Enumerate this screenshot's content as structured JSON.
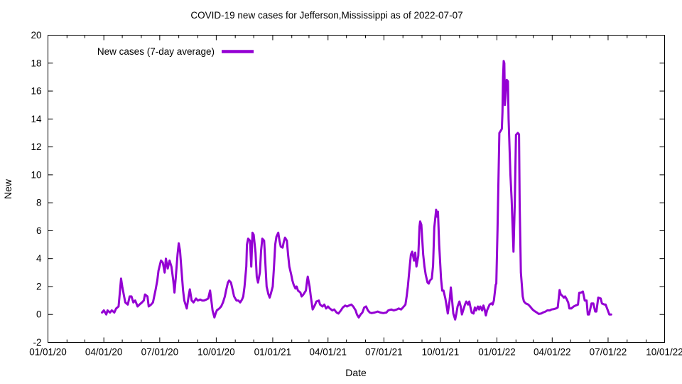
{
  "chart_data": {
    "type": "line",
    "title": "COVID-19 new cases for Jefferson,Mississippi as of 2022-07-07",
    "xlabel": "Date",
    "ylabel": "New",
    "grid": false,
    "legend_position": "top-left-inside",
    "legend": [
      {
        "label": "New cases (7-day average)",
        "color": "#9400d3"
      }
    ],
    "ylim": [
      -2,
      20
    ],
    "y_tick_step": 2,
    "x_axis": {
      "unit": "days_since_2020-01-01",
      "range_days": [
        0,
        1004
      ],
      "minor_tick_interval": "monthly",
      "major_ticks": [
        {
          "day": 0,
          "label": "01/01/20"
        },
        {
          "day": 91,
          "label": "04/01/20"
        },
        {
          "day": 182,
          "label": "07/01/20"
        },
        {
          "day": 274,
          "label": "10/01/20"
        },
        {
          "day": 366,
          "label": "01/01/21"
        },
        {
          "day": 456,
          "label": "04/01/21"
        },
        {
          "day": 547,
          "label": "07/01/21"
        },
        {
          "day": 639,
          "label": "10/01/21"
        },
        {
          "day": 731,
          "label": "01/01/22"
        },
        {
          "day": 821,
          "label": "04/01/22"
        },
        {
          "day": 912,
          "label": "07/01/22"
        },
        {
          "day": 1004,
          "label": "10/01/22"
        }
      ]
    },
    "series": [
      {
        "name": "New cases (7-day average)",
        "color": "#9400d3",
        "line_width": 3,
        "points": [
          [
            88,
            0.14
          ],
          [
            91,
            0.29
          ],
          [
            95,
            0
          ],
          [
            97,
            0.29
          ],
          [
            101,
            0.14
          ],
          [
            104,
            0.29
          ],
          [
            108,
            0.14
          ],
          [
            111,
            0.43
          ],
          [
            115,
            0.57
          ],
          [
            117,
            1.57
          ],
          [
            119,
            2.57
          ],
          [
            121,
            2
          ],
          [
            124,
            1.29
          ],
          [
            126,
            0.86
          ],
          [
            130,
            0.71
          ],
          [
            133,
            1.29
          ],
          [
            136,
            1.29
          ],
          [
            139,
            0.86
          ],
          [
            142,
            1
          ],
          [
            146,
            0.57
          ],
          [
            149,
            0.71
          ],
          [
            153,
            0.86
          ],
          [
            156,
            1
          ],
          [
            158,
            1.43
          ],
          [
            162,
            1.29
          ],
          [
            164,
            0.57
          ],
          [
            168,
            0.71
          ],
          [
            171,
            0.86
          ],
          [
            175,
            1.71
          ],
          [
            178,
            2.43
          ],
          [
            180,
            3.14
          ],
          [
            184,
            3.86
          ],
          [
            187,
            3.71
          ],
          [
            190,
            3
          ],
          [
            192,
            4
          ],
          [
            195,
            3.29
          ],
          [
            198,
            3.86
          ],
          [
            201,
            3.43
          ],
          [
            204,
            2.43
          ],
          [
            206,
            1.57
          ],
          [
            208,
            2.57
          ],
          [
            211,
            4.29
          ],
          [
            213,
            5.1
          ],
          [
            215,
            4.57
          ],
          [
            217,
            3.43
          ],
          [
            220,
            1.71
          ],
          [
            222,
            1
          ],
          [
            226,
            0.43
          ],
          [
            229,
            1.29
          ],
          [
            231,
            1.8
          ],
          [
            234,
            1
          ],
          [
            237,
            0.86
          ],
          [
            241,
            1.14
          ],
          [
            244,
            1
          ],
          [
            248,
            1.07
          ],
          [
            251,
            1
          ],
          [
            254,
            1
          ],
          [
            258,
            1.07
          ],
          [
            261,
            1.14
          ],
          [
            264,
            1.71
          ],
          [
            266,
            1
          ],
          [
            268,
            0.29
          ],
          [
            271,
            -0.21
          ],
          [
            273,
            0.07
          ],
          [
            275,
            0.29
          ],
          [
            279,
            0.43
          ],
          [
            282,
            0.57
          ],
          [
            285,
            0.86
          ],
          [
            288,
            1.29
          ],
          [
            290,
            1.71
          ],
          [
            293,
            2.29
          ],
          [
            295,
            2.43
          ],
          [
            298,
            2.29
          ],
          [
            301,
            1.71
          ],
          [
            303,
            1.29
          ],
          [
            307,
            1
          ],
          [
            310,
            1
          ],
          [
            313,
            0.86
          ],
          [
            316,
            1.07
          ],
          [
            318,
            1.29
          ],
          [
            320,
            2
          ],
          [
            323,
            3.43
          ],
          [
            324,
            5
          ],
          [
            326,
            5.43
          ],
          [
            329,
            5.29
          ],
          [
            331,
            3.43
          ],
          [
            333,
            5.86
          ],
          [
            335,
            5.71
          ],
          [
            338,
            4.43
          ],
          [
            340,
            2.71
          ],
          [
            342,
            2.29
          ],
          [
            345,
            3
          ],
          [
            347,
            4.57
          ],
          [
            349,
            5.43
          ],
          [
            352,
            5.29
          ],
          [
            354,
            3.71
          ],
          [
            356,
            2
          ],
          [
            359,
            1.43
          ],
          [
            361,
            1.21
          ],
          [
            363,
            1.5
          ],
          [
            366,
            2
          ],
          [
            368,
            3.43
          ],
          [
            370,
            5
          ],
          [
            372,
            5.57
          ],
          [
            375,
            5.86
          ],
          [
            377,
            5.29
          ],
          [
            379,
            4.86
          ],
          [
            382,
            4.79
          ],
          [
            384,
            5.21
          ],
          [
            386,
            5.5
          ],
          [
            389,
            5.29
          ],
          [
            391,
            4.29
          ],
          [
            393,
            3.43
          ],
          [
            396,
            2.86
          ],
          [
            398,
            2.43
          ],
          [
            400,
            2.14
          ],
          [
            403,
            1.86
          ],
          [
            405,
            2
          ],
          [
            407,
            1.71
          ],
          [
            411,
            1.57
          ],
          [
            413,
            1.29
          ],
          [
            416,
            1.43
          ],
          [
            420,
            1.71
          ],
          [
            422,
            2.43
          ],
          [
            423,
            2.71
          ],
          [
            426,
            2
          ],
          [
            428,
            1.29
          ],
          [
            431,
            0.36
          ],
          [
            435,
            0.71
          ],
          [
            437,
            0.93
          ],
          [
            441,
            1
          ],
          [
            443,
            0.71
          ],
          [
            447,
            0.57
          ],
          [
            450,
            0.71
          ],
          [
            453,
            0.43
          ],
          [
            456,
            0.57
          ],
          [
            459,
            0.43
          ],
          [
            463,
            0.29
          ],
          [
            466,
            0.36
          ],
          [
            470,
            0.14
          ],
          [
            473,
            0.07
          ],
          [
            477,
            0.29
          ],
          [
            480,
            0.5
          ],
          [
            484,
            0.64
          ],
          [
            487,
            0.57
          ],
          [
            490,
            0.64
          ],
          [
            494,
            0.71
          ],
          [
            497,
            0.57
          ],
          [
            501,
            0.29
          ],
          [
            503,
            0
          ],
          [
            506,
            -0.21
          ],
          [
            509,
            0
          ],
          [
            512,
            0.14
          ],
          [
            515,
            0.5
          ],
          [
            518,
            0.57
          ],
          [
            521,
            0.29
          ],
          [
            524,
            0.14
          ],
          [
            527,
            0.1
          ],
          [
            532,
            0.14
          ],
          [
            537,
            0.21
          ],
          [
            541,
            0.14
          ],
          [
            546,
            0.1
          ],
          [
            551,
            0.14
          ],
          [
            554,
            0.29
          ],
          [
            559,
            0.36
          ],
          [
            563,
            0.29
          ],
          [
            568,
            0.36
          ],
          [
            571,
            0.43
          ],
          [
            575,
            0.36
          ],
          [
            578,
            0.5
          ],
          [
            582,
            0.71
          ],
          [
            584,
            1.29
          ],
          [
            586,
            2
          ],
          [
            589,
            3.43
          ],
          [
            591,
            4.29
          ],
          [
            593,
            4.5
          ],
          [
            596,
            3.86
          ],
          [
            598,
            4.43
          ],
          [
            600,
            3.43
          ],
          [
            603,
            4.2
          ],
          [
            605,
            6.29
          ],
          [
            606,
            6.66
          ],
          [
            608,
            6.43
          ],
          [
            611,
            4.29
          ],
          [
            613,
            3.43
          ],
          [
            615,
            2.86
          ],
          [
            618,
            2.29
          ],
          [
            620,
            2.21
          ],
          [
            622,
            2.43
          ],
          [
            625,
            2.57
          ],
          [
            627,
            3.5
          ],
          [
            629,
            6.21
          ],
          [
            632,
            7.5
          ],
          [
            634,
            7
          ],
          [
            635,
            7.36
          ],
          [
            637,
            5
          ],
          [
            640,
            2.57
          ],
          [
            642,
            1.71
          ],
          [
            644,
            1.71
          ],
          [
            647,
            1.14
          ],
          [
            649,
            0.64
          ],
          [
            651,
            0.07
          ],
          [
            654,
            1
          ],
          [
            656,
            1.93
          ],
          [
            658,
            1
          ],
          [
            660,
            0.07
          ],
          [
            663,
            -0.36
          ],
          [
            665,
            0.07
          ],
          [
            667,
            0.57
          ],
          [
            670,
            0.93
          ],
          [
            672,
            0.57
          ],
          [
            674,
            0
          ],
          [
            677,
            0.43
          ],
          [
            679,
            0.71
          ],
          [
            681,
            0.93
          ],
          [
            684,
            0.71
          ],
          [
            686,
            0.93
          ],
          [
            688,
            0.5
          ],
          [
            690,
            0.14
          ],
          [
            693,
            0.07
          ],
          [
            695,
            0.5
          ],
          [
            697,
            0.29
          ],
          [
            700,
            0.57
          ],
          [
            702,
            0.36
          ],
          [
            704,
            0.57
          ],
          [
            707,
            0.29
          ],
          [
            709,
            0.64
          ],
          [
            711,
            0.36
          ],
          [
            713,
            -0.07
          ],
          [
            715,
            0.29
          ],
          [
            717,
            0.5
          ],
          [
            719,
            0.71
          ],
          [
            722,
            0.79
          ],
          [
            724,
            0.71
          ],
          [
            726,
            1
          ],
          [
            729,
            2.14
          ],
          [
            730,
            2.21
          ],
          [
            732,
            6
          ],
          [
            735,
            13
          ],
          [
            737,
            13.14
          ],
          [
            739,
            13.29
          ],
          [
            740,
            14.5
          ],
          [
            741,
            17
          ],
          [
            742,
            18.15
          ],
          [
            743,
            18
          ],
          [
            744,
            15
          ],
          [
            747,
            16.8
          ],
          [
            749,
            16.7
          ],
          [
            750,
            14
          ],
          [
            753,
            10
          ],
          [
            755,
            8.21
          ],
          [
            758,
            4.5
          ],
          [
            760,
            7.9
          ],
          [
            762,
            12.86
          ],
          [
            765,
            13
          ],
          [
            767,
            12.9
          ],
          [
            768,
            7.9
          ],
          [
            770,
            3
          ],
          [
            773,
            1.29
          ],
          [
            775,
            0.93
          ],
          [
            778,
            0.79
          ],
          [
            782,
            0.71
          ],
          [
            785,
            0.57
          ],
          [
            789,
            0.36
          ],
          [
            792,
            0.25
          ],
          [
            796,
            0.14
          ],
          [
            799,
            0.04
          ],
          [
            803,
            0.07
          ],
          [
            806,
            0.14
          ],
          [
            810,
            0.21
          ],
          [
            813,
            0.29
          ],
          [
            817,
            0.29
          ],
          [
            820,
            0.36
          ],
          [
            824,
            0.39
          ],
          [
            827,
            0.43
          ],
          [
            830,
            0.5
          ],
          [
            833,
            1.75
          ],
          [
            835,
            1.43
          ],
          [
            837,
            1.36
          ],
          [
            840,
            1.21
          ],
          [
            842,
            1.29
          ],
          [
            844,
            1.14
          ],
          [
            847,
            0.86
          ],
          [
            849,
            0.43
          ],
          [
            852,
            0.43
          ],
          [
            856,
            0.57
          ],
          [
            859,
            0.64
          ],
          [
            863,
            0.71
          ],
          [
            865,
            1.55
          ],
          [
            868,
            1.57
          ],
          [
            871,
            1.64
          ],
          [
            874,
            1
          ],
          [
            877,
            1
          ],
          [
            879,
            0
          ],
          [
            881,
            0
          ],
          [
            885,
            0.79
          ],
          [
            888,
            0.79
          ],
          [
            891,
            0.21
          ],
          [
            893,
            0.21
          ],
          [
            896,
            1.21
          ],
          [
            900,
            1.14
          ],
          [
            902,
            0.79
          ],
          [
            906,
            0.71
          ],
          [
            908,
            0.71
          ],
          [
            911,
            0.36
          ],
          [
            914,
            0
          ],
          [
            917,
            0
          ]
        ]
      }
    ]
  }
}
